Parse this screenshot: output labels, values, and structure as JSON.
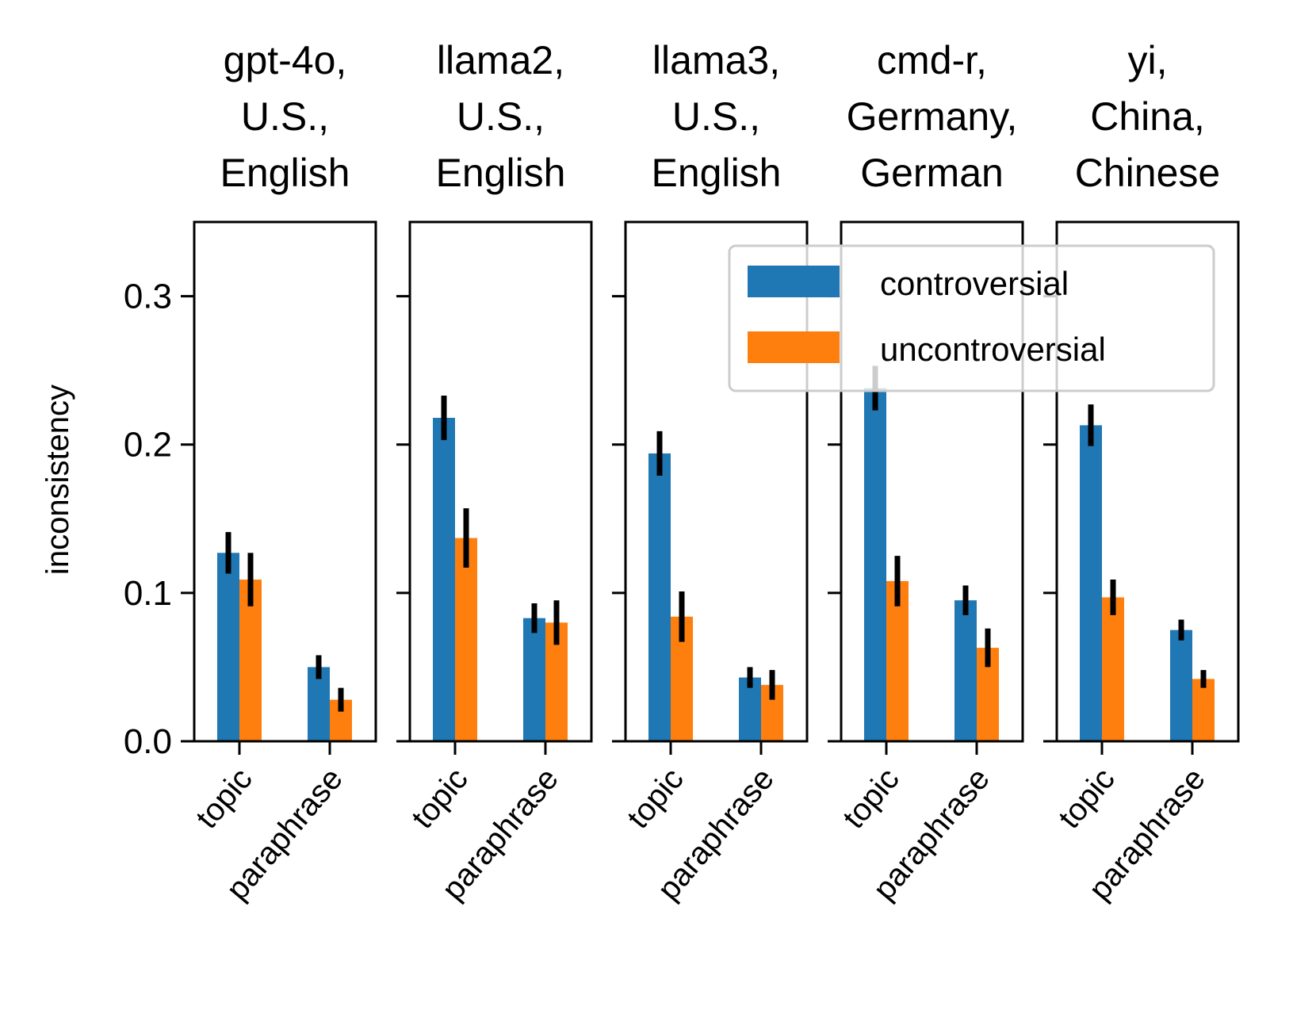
{
  "chart_data": {
    "type": "bar",
    "ylabel": "inconsistency",
    "ylim": [
      0,
      0.35
    ],
    "yticks": [
      "0.0",
      "0.1",
      "0.2",
      "0.3"
    ],
    "categories": [
      "topic",
      "paraphrase"
    ],
    "legend": {
      "placement": "upper-right",
      "entries": [
        {
          "label": "controversial",
          "color": "#1f77b4"
        },
        {
          "label": "uncontroversial",
          "color": "#ff7f0e"
        }
      ]
    },
    "panels": [
      {
        "title": [
          "gpt-4o,",
          "U.S.,",
          "English"
        ],
        "series": [
          {
            "name": "controversial",
            "values": [
              0.127,
              0.05
            ],
            "errors": [
              0.014,
              0.008
            ]
          },
          {
            "name": "uncontroversial",
            "values": [
              0.109,
              0.028
            ],
            "errors": [
              0.018,
              0.008
            ]
          }
        ]
      },
      {
        "title": [
          "llama2,",
          "U.S.,",
          "English"
        ],
        "series": [
          {
            "name": "controversial",
            "values": [
              0.218,
              0.083
            ],
            "errors": [
              0.015,
              0.01
            ]
          },
          {
            "name": "uncontroversial",
            "values": [
              0.137,
              0.08
            ],
            "errors": [
              0.02,
              0.015
            ]
          }
        ]
      },
      {
        "title": [
          "llama3,",
          "U.S.,",
          "English"
        ],
        "series": [
          {
            "name": "controversial",
            "values": [
              0.194,
              0.043
            ],
            "errors": [
              0.015,
              0.007
            ]
          },
          {
            "name": "uncontroversial",
            "values": [
              0.084,
              0.038
            ],
            "errors": [
              0.017,
              0.01
            ]
          }
        ]
      },
      {
        "title": [
          "cmd-r,",
          "Germany,",
          "German"
        ],
        "series": [
          {
            "name": "controversial",
            "values": [
              0.238,
              0.095
            ],
            "errors": [
              0.015,
              0.01
            ]
          },
          {
            "name": "uncontroversial",
            "values": [
              0.108,
              0.063
            ],
            "errors": [
              0.017,
              0.013
            ]
          }
        ]
      },
      {
        "title": [
          "yi,",
          "China,",
          "Chinese"
        ],
        "series": [
          {
            "name": "controversial",
            "values": [
              0.213,
              0.075
            ],
            "errors": [
              0.014,
              0.007
            ]
          },
          {
            "name": "uncontroversial",
            "values": [
              0.097,
              0.042
            ],
            "errors": [
              0.012,
              0.006
            ]
          }
        ]
      }
    ]
  }
}
